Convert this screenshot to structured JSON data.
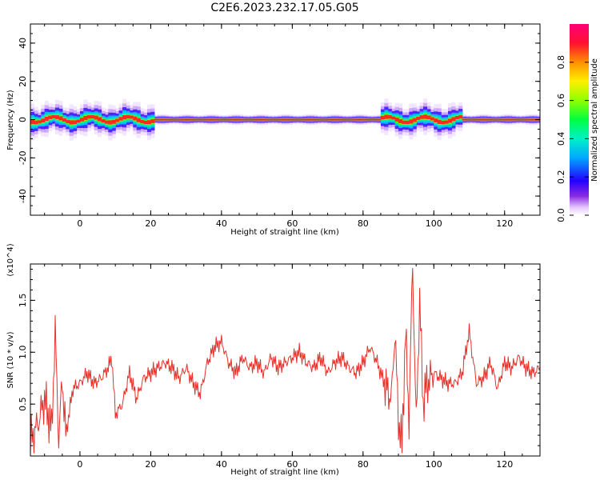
{
  "title": "C2E6.2023.232.17.05.G05",
  "colors": {
    "snr_line": "#e8302a",
    "axes": "#000000"
  },
  "chart_data": [
    {
      "type": "heatmap",
      "title": "C2E6.2023.232.17.05.G05",
      "xlabel": "Height of straight line (km)",
      "ylabel": "Frequency (Hz)",
      "xlim": [
        -14,
        130
      ],
      "ylim": [
        -50,
        50
      ],
      "x_ticks": [
        0,
        20,
        40,
        60,
        80,
        100,
        120
      ],
      "y_ticks": [
        -40,
        -20,
        0,
        20,
        40
      ],
      "colorbar": {
        "label": "Normalized spectral amplitude",
        "range": [
          0.0,
          1.0
        ],
        "ticks": [
          0.0,
          0.2,
          0.4,
          0.6,
          0.8
        ],
        "colormap": "rainbow"
      },
      "band": {
        "center_hz": 0,
        "typical_half_width_hz": 2,
        "max_half_width_hz": 8,
        "wide_regions_km": [
          [
            -14,
            20
          ],
          [
            85,
            107
          ]
        ]
      }
    },
    {
      "type": "line",
      "xlabel": "Height of straight line (km)",
      "ylabel": "SNR (10 * v/v)",
      "y_multiplier": "(x10^4)",
      "xlim": [
        -14,
        130
      ],
      "ylim": [
        0,
        18500
      ],
      "x_ticks": [
        0,
        20,
        40,
        60,
        80,
        100,
        120
      ],
      "y_ticks": [
        5000,
        10000,
        15000
      ],
      "y_tick_labels": [
        "0.5",
        "1.0",
        "1.5"
      ],
      "series": [
        {
          "x": [
            -14,
            -12,
            -10,
            -8,
            -7,
            -6,
            -5,
            -4,
            -2,
            0,
            2,
            4,
            6,
            8,
            9,
            10,
            12,
            14,
            16,
            18,
            20,
            22,
            24,
            26,
            28,
            30,
            32,
            34,
            36,
            38,
            40,
            42,
            44,
            46,
            48,
            50,
            52,
            54,
            56,
            58,
            60,
            62,
            64,
            66,
            68,
            70,
            72,
            74,
            76,
            78,
            80,
            82,
            84,
            86,
            88,
            89,
            90,
            91,
            92,
            93,
            94,
            95,
            96,
            97,
            98,
            100,
            102,
            104,
            106,
            108,
            110,
            112,
            114,
            116,
            118,
            120,
            122,
            124,
            126,
            128,
            130
          ],
          "y": [
            1500,
            3000,
            5500,
            2500,
            12000,
            1500,
            7500,
            2000,
            6500,
            7000,
            8000,
            7000,
            7500,
            8500,
            9500,
            4000,
            5000,
            8000,
            5500,
            7500,
            8000,
            8500,
            9000,
            8500,
            7500,
            8500,
            7000,
            6000,
            9000,
            10500,
            11000,
            9000,
            8000,
            9500,
            8500,
            9000,
            8000,
            9500,
            8500,
            9000,
            9500,
            10000,
            9000,
            8500,
            9500,
            8000,
            9000,
            9500,
            8500,
            8000,
            9000,
            10500,
            9000,
            7000,
            5500,
            12000,
            3500,
            1000,
            12000,
            3500,
            18500,
            3000,
            15000,
            5000,
            7000,
            8000,
            7500,
            7000,
            7000,
            8000,
            12000,
            7000,
            7500,
            9000,
            6500,
            9000,
            8500,
            9500,
            8500,
            8000,
            8500
          ]
        }
      ]
    }
  ]
}
